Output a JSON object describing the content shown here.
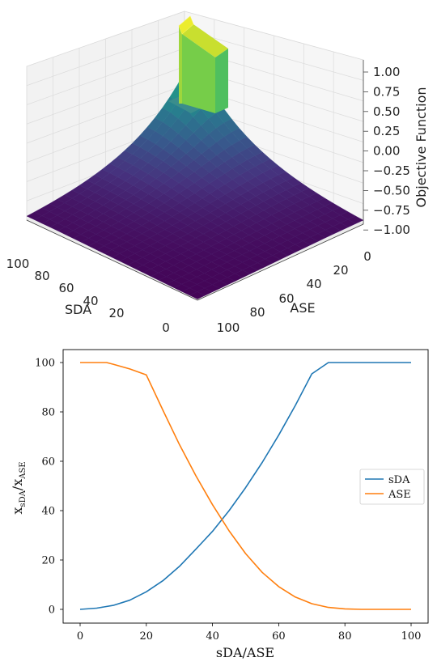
{
  "chart_data": [
    {
      "type": "surface",
      "xlabel": "SDA",
      "ylabel": "ASE",
      "zlabel": "Objective Function",
      "x_ticks": [
        "100",
        "80",
        "60",
        "40",
        "20",
        "0"
      ],
      "y_ticks": [
        "0",
        "20",
        "40",
        "60",
        "80",
        "100"
      ],
      "z_ticks": [
        "1.00",
        "0.75",
        "0.50",
        "0.25",
        "0.00",
        "−0.25",
        "−0.50",
        "−0.75",
        "−1.00"
      ],
      "xlim": [
        0,
        100
      ],
      "ylim": [
        0,
        100
      ],
      "zlim": [
        -1,
        1
      ],
      "colormap": "viridis",
      "surface_peak": {
        "sda_range": [
          75,
          100
        ],
        "ase_range": [
          0,
          20
        ],
        "z": 1.0
      },
      "surface_corner_level": -1.0,
      "grid": true
    },
    {
      "type": "line",
      "xlabel": "sDA/ASE",
      "ylabel": "x_sDA/x_ASE",
      "ylabel_parts": {
        "a": "x",
        "a_sub": "sDA",
        "sep": "/x",
        "b_sub": "ASE"
      },
      "x_ticks": [
        "0",
        "20",
        "40",
        "60",
        "80",
        "100"
      ],
      "y_ticks": [
        "0",
        "20",
        "40",
        "60",
        "80",
        "100"
      ],
      "xlim": [
        0,
        100
      ],
      "ylim": [
        0,
        100
      ],
      "legend_position": "right",
      "grid": false,
      "series": [
        {
          "name": "sDA",
          "color": "#1f77b4",
          "x": [
            0,
            5,
            10,
            15,
            20,
            25,
            30,
            35,
            40,
            45,
            50,
            55,
            60,
            65,
            70,
            75,
            80,
            85,
            90,
            95,
            100
          ],
          "y": [
            0,
            0.5,
            1.6,
            3.7,
            7.1,
            11.6,
            17.4,
            24.4,
            31.6,
            40.0,
            49.3,
            59.5,
            70.6,
            82.6,
            95.4,
            100,
            100,
            100,
            100,
            100,
            100
          ]
        },
        {
          "name": "ASE",
          "color": "#ff7f0e",
          "x": [
            0,
            5,
            8,
            10,
            15,
            20,
            25,
            30,
            35,
            40,
            45,
            50,
            55,
            60,
            65,
            70,
            75,
            80,
            85,
            90,
            95,
            100
          ],
          "y": [
            100,
            100,
            100,
            99.3,
            97.4,
            95.0,
            80.7,
            66.8,
            54.1,
            42.4,
            31.8,
            22.6,
            15.0,
            9.2,
            5.0,
            2.3,
            0.8,
            0.2,
            0,
            0,
            0,
            0
          ]
        }
      ]
    }
  ]
}
